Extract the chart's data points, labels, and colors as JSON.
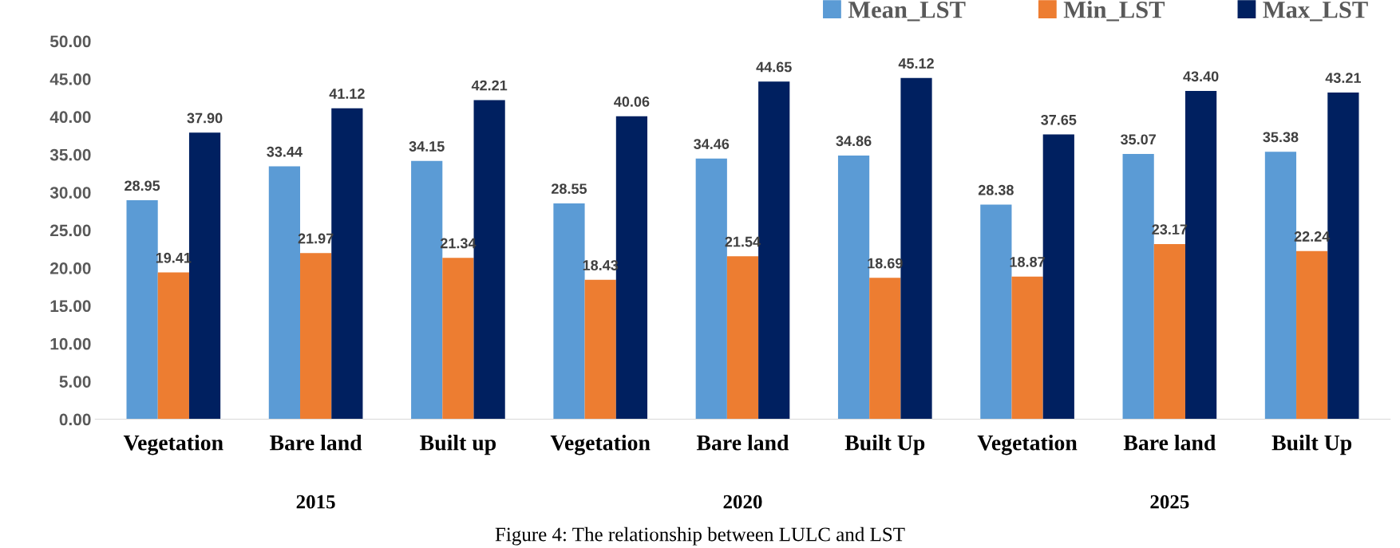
{
  "chart_data": {
    "type": "bar",
    "categories": [
      "Vegetation",
      "Bare land",
      "Built up",
      "Vegetation",
      "Bare land",
      "Built Up",
      "Vegetation",
      "Bare land",
      "Built Up"
    ],
    "series": [
      {
        "name": "Mean_LST",
        "color": "#5b9bd5",
        "values": [
          28.95,
          33.44,
          34.15,
          28.55,
          34.46,
          34.86,
          28.38,
          35.07,
          35.38
        ]
      },
      {
        "name": "Min_LST",
        "color": "#ed7d31",
        "values": [
          19.41,
          21.97,
          21.34,
          18.43,
          21.54,
          18.69,
          18.87,
          23.17,
          22.24
        ]
      },
      {
        "name": "Max_LST",
        "color": "#002060",
        "values": [
          37.9,
          41.12,
          42.21,
          40.06,
          44.65,
          45.12,
          37.65,
          43.4,
          43.21
        ]
      }
    ],
    "value_labels": [
      [
        "28.95",
        "33.44",
        "34.15",
        "28.55",
        "34.46",
        "34.86",
        "28.38",
        "35.07",
        "35.38"
      ],
      [
        "19.41",
        "21.97",
        "21.34",
        "18.43",
        "21.54",
        "18.69",
        "18.87",
        "23.17",
        "22.24"
      ],
      [
        "37.90",
        "41.12",
        "42.21",
        "40.06",
        "44.65",
        "45.12",
        "37.65",
        "43.40",
        "43.21"
      ]
    ],
    "ylim": [
      0,
      50
    ],
    "yticks": [
      {
        "value": 0,
        "label": "0.00"
      },
      {
        "value": 5,
        "label": "5.00"
      },
      {
        "value": 10,
        "label": "10.00"
      },
      {
        "value": 15,
        "label": "15.00"
      },
      {
        "value": 20,
        "label": "20.00"
      },
      {
        "value": 25,
        "label": "25.00"
      },
      {
        "value": 30,
        "label": "30.00"
      },
      {
        "value": 35,
        "label": "35.00"
      },
      {
        "value": 40,
        "label": "40.00"
      },
      {
        "value": 45,
        "label": "45.00"
      },
      {
        "value": 50,
        "label": "50.00"
      }
    ],
    "annotations": [
      "2015",
      "2020",
      "2025",
      "Figure 4: The relationship between LULC and LST"
    ],
    "grid": false,
    "legend": "top right"
  }
}
